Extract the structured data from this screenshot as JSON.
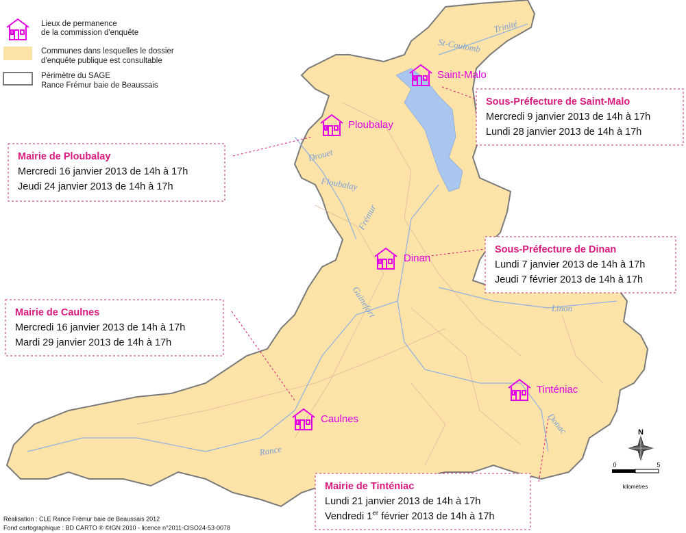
{
  "legend": [
    {
      "lines": [
        "Lieux de permanence",
        "de la commission d'enquête"
      ]
    },
    {
      "lines": [
        "Communes dans lesquelles le dossier",
        "d'enquête publique est consultable"
      ]
    },
    {
      "lines": [
        "Périmètre du SAGE",
        "Rance Frémur baie de Beaussais"
      ]
    }
  ],
  "towns": [
    "Saint-Malo",
    "Ploubalay",
    "Dinan",
    "Tinténiac",
    "Caulnes"
  ],
  "rivers": [
    "Trinité",
    "St-Coulomb",
    "Drouet",
    "Floubalay",
    "Frémur",
    "Guinefort",
    "Linon",
    "Donac",
    "Rance"
  ],
  "boxes": [
    {
      "title": "Sous-Préfecture de Saint-Malo",
      "lines": [
        "Mercredi 9 janvier 2013 de 14h à 17h",
        "Lundi 28 janvier 2013 de 14h à 17h"
      ]
    },
    {
      "title": "Mairie de Ploubalay",
      "lines": [
        "Mercredi 16 janvier 2013 de 14h à 17h",
        "Jeudi 24 janvier 2013 de 14h à 17h"
      ]
    },
    {
      "title": "Sous-Préfecture de Dinan",
      "lines": [
        "Lundi 7 janvier 2013 de 14h à 17h",
        "Jeudi 7 février 2013 de 14h à 17h"
      ]
    },
    {
      "title": "Mairie de Caulnes",
      "lines": [
        "Mercredi 16 janvier 2013 de 14h à 17h",
        "Mardi 29 janvier 2013 de 14h à 17h"
      ]
    },
    {
      "title": "Mairie de Tinténiac",
      "lines": [
        "Lundi 21 janvier 2013 de 14h à 17h",
        [
          "Vendredi 1",
          "er",
          " février 2013 de 14h à 17h"
        ]
      ]
    }
  ],
  "north": "N",
  "scale": {
    "start": "0",
    "end": "5",
    "unit": "kilomètres"
  },
  "credits": [
    "Réalisation : CLE Rance Frémur baie de Beaussais 2012",
    "Fond cartographique : BD CARTO ® ©IGN 2010 - licence n°2011-CISO24-53-0078"
  ]
}
